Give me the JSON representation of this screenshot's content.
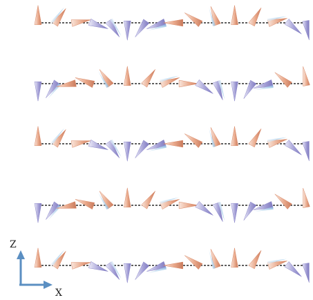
{
  "colors": {
    "dashed_line": "#2a2a2a",
    "cone_warm_light": "#f7ddd0",
    "cone_warm_dark": "#d98866",
    "cone_cool_light": "#e4e2f4",
    "cone_cool_dark": "#8a86c9",
    "cone_tip_blue": "#9fc9e8",
    "axis_arrow": "#5b8fc2"
  },
  "axes": {
    "z_label": "Z",
    "x_label": "X"
  },
  "chains": [
    {
      "pattern": "spiral",
      "phase": 0
    },
    {
      "pattern": "spiral_reversed",
      "phase": 0
    },
    {
      "pattern": "spiral",
      "phase": 0
    },
    {
      "pattern": "spiral_reversed",
      "phase": 0
    },
    {
      "pattern": "spiral",
      "phase": 0
    }
  ],
  "spins_per_chain": 16,
  "spiral_angles_deg": [
    0,
    35,
    80,
    110,
    145,
    180,
    215,
    250,
    270,
    305,
    340,
    360,
    30,
    75,
    130,
    170
  ]
}
